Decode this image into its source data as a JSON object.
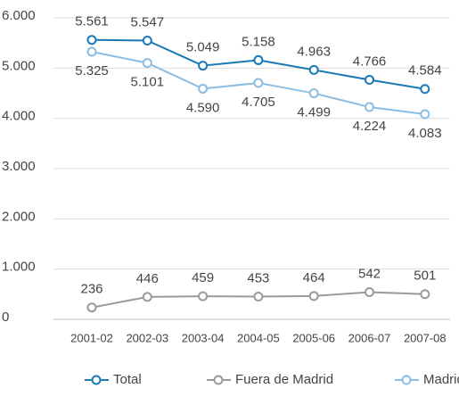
{
  "chart_data": {
    "type": "line",
    "categories": [
      "2001-02",
      "2002-03",
      "2003-04",
      "2004-05",
      "2005-06",
      "2006-07",
      "2007-08"
    ],
    "series": [
      {
        "name": "Total",
        "color": "#1a7ab5",
        "values": [
          5561,
          5547,
          5049,
          5158,
          4963,
          4766,
          4584
        ],
        "value_labels": [
          "5.561",
          "5.547",
          "5.049",
          "5.158",
          "4.963",
          "4.766",
          "4.584"
        ]
      },
      {
        "name": "Fuera de Madrid",
        "color": "#9a9a9a",
        "values": [
          236,
          446,
          459,
          453,
          464,
          542,
          501
        ]
      },
      {
        "name": "Madrid",
        "color": "#8cbde2",
        "values": [
          5325,
          5101,
          4590,
          4705,
          4499,
          4224,
          4083
        ],
        "value_labels": [
          "5.325",
          "5.101",
          "4.590",
          "4.705",
          "4.499",
          "4.224",
          "4.083"
        ]
      }
    ],
    "ylim": [
      0,
      6000
    ],
    "yticks": [
      0,
      {
        "value": 1000,
        "label": "1.000"
      },
      {
        "value": 2000,
        "label": "2.000"
      },
      {
        "value": 3000,
        "label": "3.000"
      },
      {
        "value": 4000,
        "label": "4.000"
      },
      {
        "value": 5000,
        "label": "5.000"
      },
      {
        "value": 6000,
        "label": "6.000"
      }
    ],
    "grid": true,
    "legend": "bottom"
  }
}
